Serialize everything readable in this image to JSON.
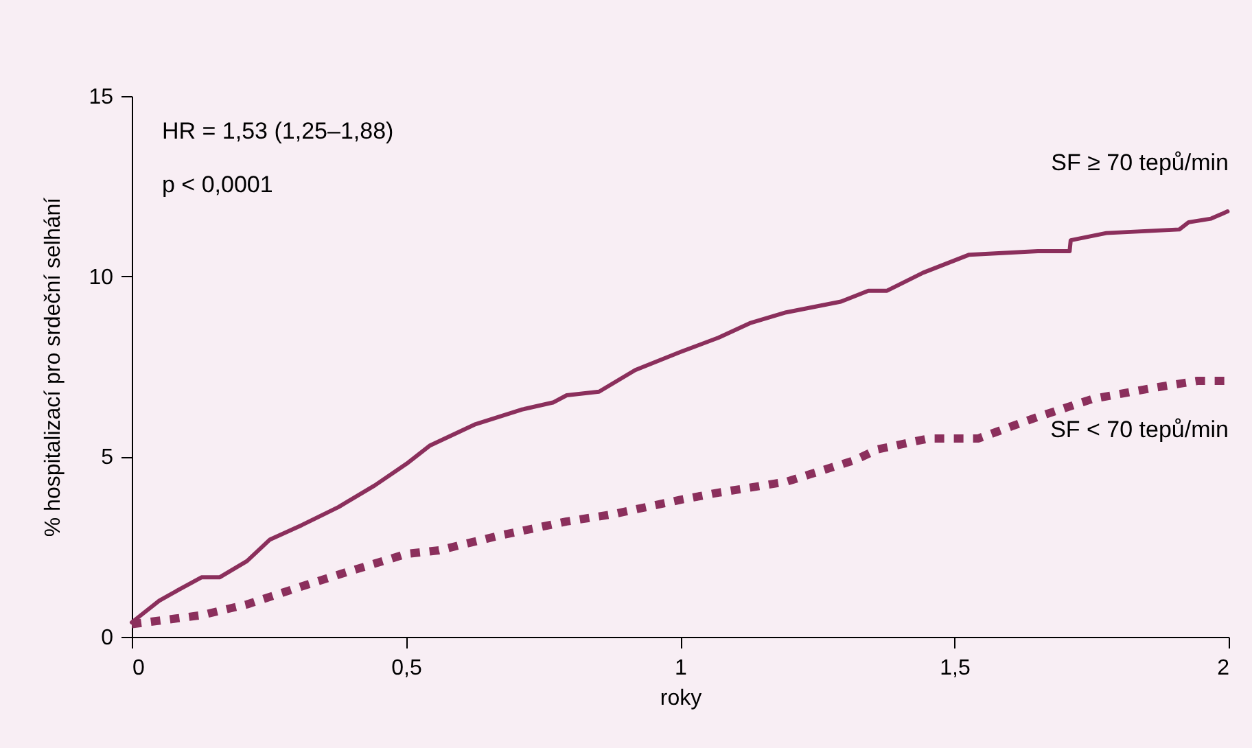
{
  "chart_data": {
    "type": "line",
    "xlabel": "roky",
    "ylabel": "% hospitalizací pro srdeční selhání",
    "annotations": [
      "HR = 1,53 (1,25–1,88)",
      "p < 0,0001"
    ],
    "xlim": [
      0,
      2
    ],
    "xticks": [
      0,
      {
        "value": 0.5,
        "label": "0,5"
      },
      1,
      {
        "value": 1.5,
        "label": "1,5"
      },
      2
    ],
    "ylim": [
      0,
      15
    ],
    "yticks": [
      0,
      5,
      10,
      15
    ],
    "grid": false,
    "marker": "none",
    "series": [
      {
        "name": "SF ≥ 70 tepů/min",
        "color": "#8b2f5c",
        "line_style": "solid",
        "x": [
          0,
          0.05,
          0.085,
          0.127,
          0.16,
          0.21,
          0.252,
          0.31,
          0.377,
          0.443,
          0.501,
          0.543,
          0.627,
          0.71,
          0.768,
          0.793,
          0.852,
          0.918,
          1.0,
          1.07,
          1.127,
          1.193,
          1.293,
          1.343,
          1.377,
          1.443,
          1.527,
          1.652,
          1.71,
          1.712,
          1.777,
          1.91,
          1.927,
          1.968,
          1.998
        ],
        "values": [
          0.4,
          1.0,
          1.3,
          1.65,
          1.65,
          2.1,
          2.7,
          3.1,
          3.6,
          4.2,
          4.8,
          5.3,
          5.9,
          6.3,
          6.5,
          6.7,
          6.8,
          7.4,
          7.9,
          8.3,
          8.7,
          9.0,
          9.3,
          9.6,
          9.6,
          10.1,
          10.6,
          10.7,
          10.7,
          11.0,
          11.2,
          11.3,
          11.5,
          11.6,
          11.8
        ]
      },
      {
        "name": "SF < 70 tepů/min",
        "color": "#8b2f5c",
        "line_style": "dotted",
        "x": [
          0,
          0.127,
          0.21,
          0.31,
          0.393,
          0.501,
          0.56,
          0.668,
          0.793,
          0.877,
          1.0,
          1.07,
          1.193,
          1.235,
          1.318,
          1.36,
          1.452,
          1.543,
          1.652,
          1.752,
          1.86,
          1.943,
          1.998
        ],
        "values": [
          0.35,
          0.6,
          0.9,
          1.4,
          1.8,
          2.3,
          2.4,
          2.8,
          3.2,
          3.4,
          3.8,
          4.0,
          4.3,
          4.5,
          4.9,
          5.2,
          5.5,
          5.5,
          6.1,
          6.6,
          6.9,
          7.1,
          7.1
        ]
      }
    ]
  }
}
